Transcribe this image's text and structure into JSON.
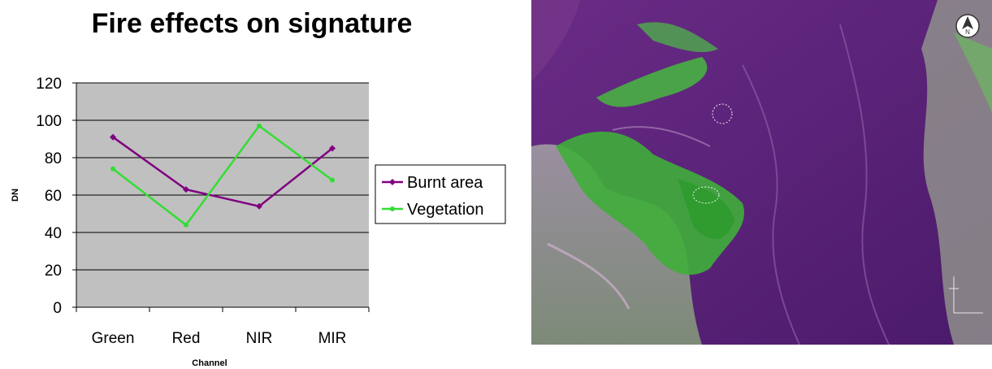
{
  "chart_data": {
    "type": "line",
    "title": "Fire effects on signature",
    "xlabel": "Channel",
    "ylabel": "DN",
    "categories": [
      "Green",
      "Red",
      "NIR",
      "MIR"
    ],
    "ylim": [
      0,
      120
    ],
    "yticks": [
      "0",
      "20",
      "40",
      "60",
      "80",
      "100",
      "120"
    ],
    "grid": true,
    "legend_position": "right",
    "background": "#c0c0c0",
    "series": [
      {
        "name": "Burnt area",
        "values": [
          91,
          63,
          54,
          85
        ],
        "color": "#800080",
        "marker": "diamond"
      },
      {
        "name": "Vegetation",
        "values": [
          74,
          44,
          97,
          68
        ],
        "color": "#33dd33",
        "marker": "circle"
      }
    ]
  },
  "image": {
    "description_icon": "north-arrow-icon",
    "north_label": "N",
    "colors": {
      "burnt": "#5a1f78",
      "vegetation": "#3fae3a",
      "bare": "#b9a6b0"
    }
  }
}
